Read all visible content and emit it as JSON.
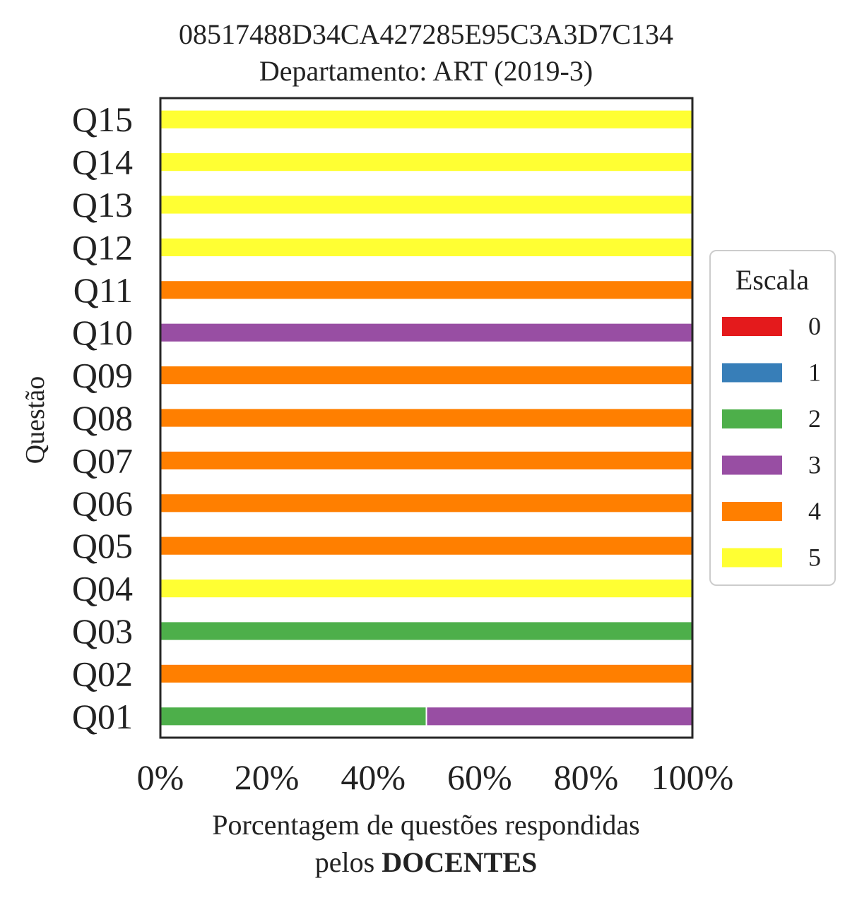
{
  "chart_data": {
    "type": "bar",
    "orientation": "horizontal",
    "stacked": true,
    "title": "08517488D34CA427285E95C3A3D7C134",
    "subtitle": "Departamento: ART (2019-3)",
    "ylabel": "Questão",
    "xlabel_line1": "Porcentagem de questões respondidas",
    "xlabel_line2_prefix": "pelos ",
    "xlabel_line2_bold": "DOCENTES",
    "xlim": [
      0,
      100
    ],
    "xticks": [
      "0%",
      "20%",
      "40%",
      "60%",
      "80%",
      "100%"
    ],
    "categories": [
      "Q01",
      "Q02",
      "Q03",
      "Q04",
      "Q05",
      "Q06",
      "Q07",
      "Q08",
      "Q09",
      "Q10",
      "Q11",
      "Q12",
      "Q13",
      "Q14",
      "Q15"
    ],
    "legend_title": "Escala",
    "legend_position": "center-right outside",
    "grid": false,
    "series": [
      {
        "name": "0",
        "color": "#e41a1c",
        "values": [
          0,
          0,
          0,
          0,
          0,
          0,
          0,
          0,
          0,
          0,
          0,
          0,
          0,
          0,
          0
        ]
      },
      {
        "name": "1",
        "color": "#377eb8",
        "values": [
          0,
          0,
          0,
          0,
          0,
          0,
          0,
          0,
          0,
          0,
          0,
          0,
          0,
          0,
          0
        ]
      },
      {
        "name": "2",
        "color": "#4daf4a",
        "values": [
          50,
          0,
          100,
          0,
          0,
          0,
          0,
          0,
          0,
          0,
          0,
          0,
          0,
          0,
          0
        ]
      },
      {
        "name": "3",
        "color": "#984ea3",
        "values": [
          50,
          0,
          0,
          0,
          0,
          0,
          0,
          0,
          0,
          100,
          0,
          0,
          0,
          0,
          0
        ]
      },
      {
        "name": "4",
        "color": "#ff7f00",
        "values": [
          0,
          100,
          0,
          0,
          100,
          100,
          100,
          100,
          100,
          0,
          100,
          0,
          0,
          0,
          0
        ]
      },
      {
        "name": "5",
        "color": "#ffff33",
        "values": [
          0,
          0,
          0,
          100,
          0,
          0,
          0,
          0,
          0,
          0,
          0,
          100,
          100,
          100,
          100
        ]
      }
    ]
  }
}
